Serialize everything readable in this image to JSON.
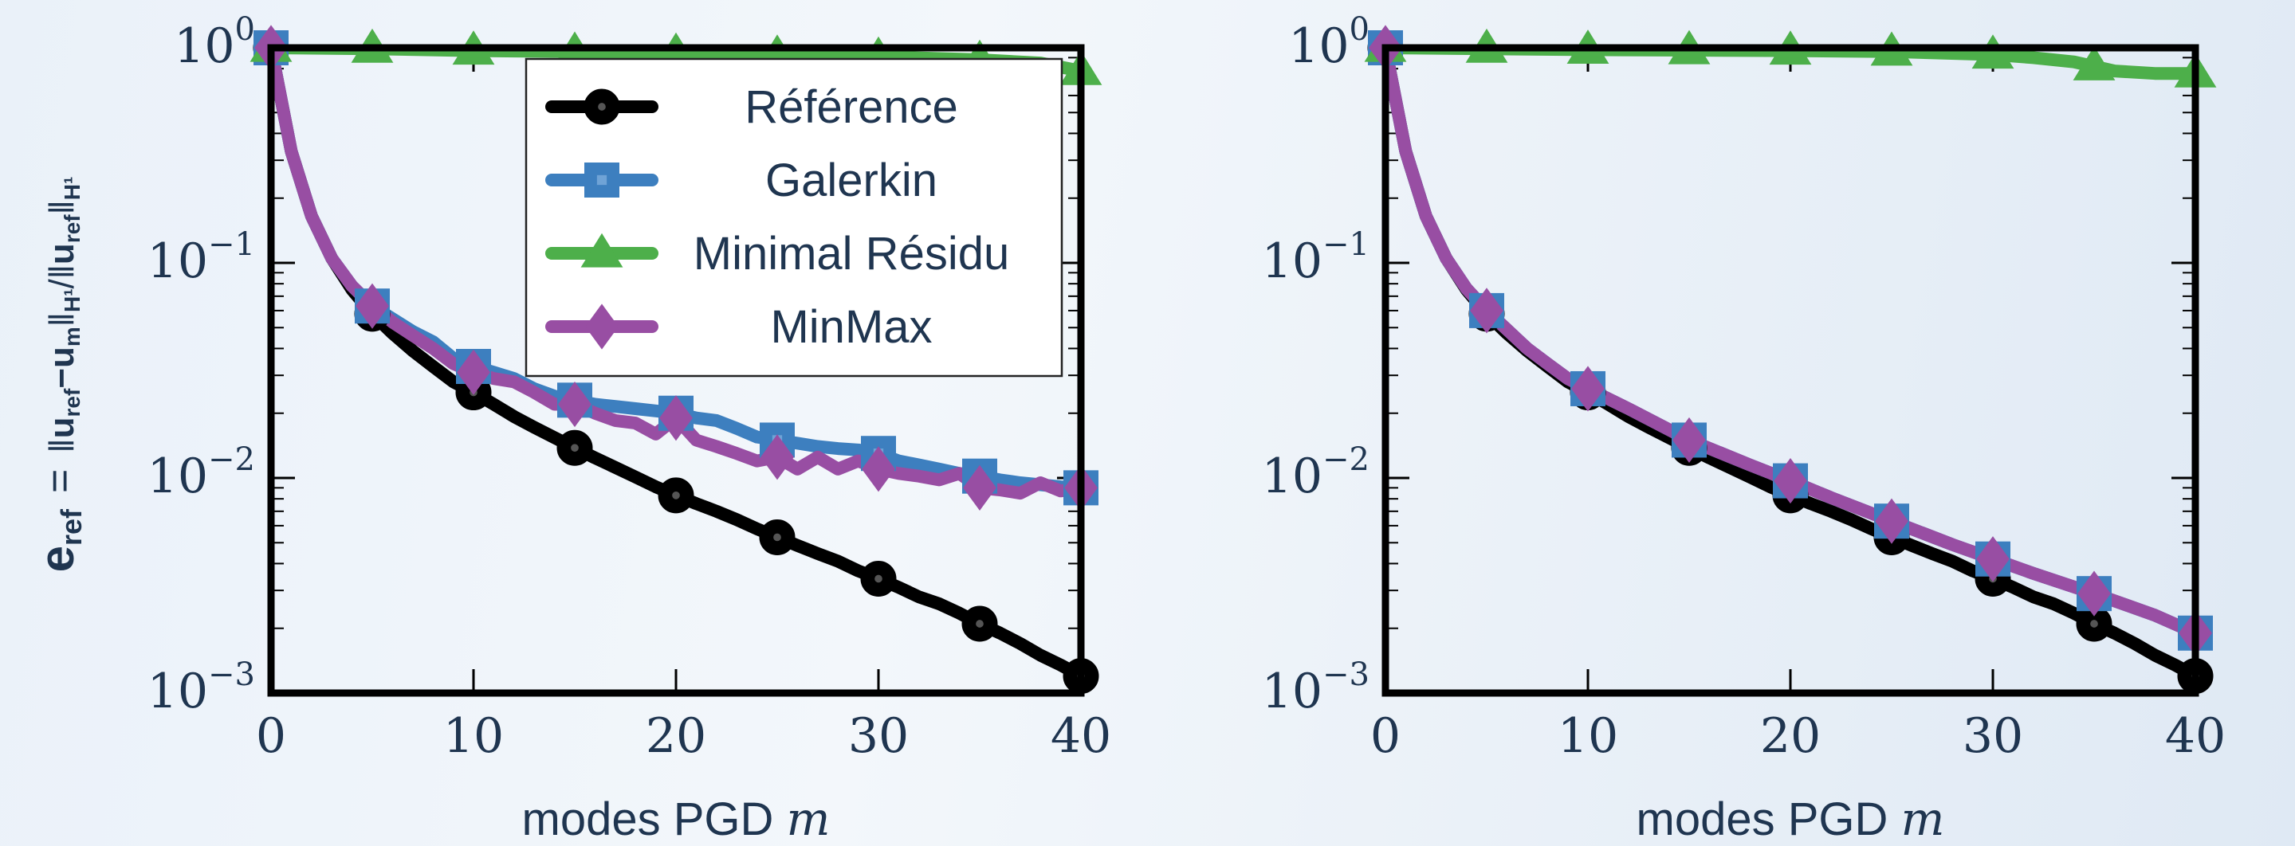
{
  "y_axis_label": "e_ref = ||u_ref − u_m||_H¹ / ||u_ref||_H¹",
  "y_axis_label_parts": {
    "e": "e",
    "e_sub": "ref",
    "eq": "=",
    "num_a": "u",
    "num_a_sub": "ref",
    "minus": "−",
    "num_b": "u",
    "num_b_sub": "m",
    "norm_sub": "H¹",
    "slash": "/",
    "den": "u",
    "den_sub": "ref"
  },
  "x_axis_label": {
    "text": "modes PGD ",
    "variable": "m"
  },
  "tick_base": "10",
  "chart_data": [
    {
      "type": "line",
      "yscale": "log",
      "xlim": [
        0,
        40
      ],
      "ylim": [
        0.001,
        1
      ],
      "xticks": [
        0,
        10,
        20,
        30,
        40
      ],
      "yticks": [
        {
          "value": 1,
          "exp": "0"
        },
        {
          "value": 0.1,
          "exp": "−1"
        },
        {
          "value": 0.01,
          "exp": "−2"
        },
        {
          "value": 0.001,
          "exp": "−3"
        }
      ],
      "xlabel": "modes PGD m",
      "ylabel": "e_ref",
      "grid": false,
      "legend": {
        "position": "top-right"
      },
      "series": [
        {
          "name": "Référence",
          "color": "#000000",
          "marker": "circle",
          "x": [
            0,
            1,
            2,
            3,
            4,
            5,
            6,
            7,
            8,
            9,
            10,
            11,
            12,
            13,
            14,
            15,
            16,
            17,
            18,
            19,
            20,
            21,
            22,
            23,
            24,
            25,
            26,
            27,
            28,
            29,
            30,
            31,
            32,
            33,
            34,
            35,
            36,
            37,
            38,
            39,
            40
          ],
          "y": [
            1,
            0.33,
            0.165,
            0.105,
            0.075,
            0.058,
            0.047,
            0.039,
            0.033,
            0.028,
            0.025,
            0.022,
            0.0193,
            0.0172,
            0.0154,
            0.0138,
            0.0124,
            0.0112,
            0.0101,
            0.0091,
            0.0083,
            0.0076,
            0.007,
            0.0064,
            0.0058,
            0.0053,
            0.00485,
            0.00445,
            0.0041,
            0.0037,
            0.0034,
            0.0031,
            0.0028,
            0.0026,
            0.00235,
            0.0021,
            0.0019,
            0.0017,
            0.0015,
            0.00135,
            0.0012
          ],
          "marker_x": [
            0,
            5,
            10,
            15,
            20,
            25,
            30,
            35,
            40
          ]
        },
        {
          "name": "Galerkin",
          "color": "#3d7fbf",
          "marker": "square",
          "x": [
            0,
            1,
            2,
            3,
            4,
            5,
            6,
            7,
            8,
            9,
            10,
            11,
            12,
            13,
            14,
            15,
            16,
            17,
            18,
            19,
            20,
            21,
            22,
            23,
            24,
            25,
            26,
            27,
            28,
            29,
            30,
            31,
            32,
            33,
            34,
            35,
            36,
            37,
            38,
            39,
            40
          ],
          "y": [
            1,
            0.33,
            0.165,
            0.105,
            0.078,
            0.063,
            0.055,
            0.048,
            0.043,
            0.036,
            0.033,
            0.031,
            0.029,
            0.026,
            0.024,
            0.023,
            0.022,
            0.0215,
            0.021,
            0.0205,
            0.02,
            0.019,
            0.0185,
            0.017,
            0.0155,
            0.015,
            0.0145,
            0.014,
            0.0137,
            0.0135,
            0.013,
            0.012,
            0.0115,
            0.011,
            0.0105,
            0.0102,
            0.0098,
            0.0095,
            0.0093,
            0.0091,
            0.009
          ],
          "marker_x": [
            0,
            5,
            10,
            15,
            20,
            25,
            30,
            35,
            40
          ]
        },
        {
          "name": "Minimal Résidu",
          "color": "#4daf4a",
          "marker": "triangle",
          "x": [
            0,
            5,
            10,
            15,
            20,
            25,
            30,
            35,
            38,
            40
          ],
          "y": [
            1,
            0.99,
            0.97,
            0.96,
            0.95,
            0.93,
            0.91,
            0.88,
            0.85,
            0.78
          ],
          "marker_x": [
            0,
            5,
            10,
            15,
            20,
            25,
            30,
            35,
            40
          ]
        },
        {
          "name": "MinMax",
          "color": "#984ea3",
          "marker": "diamond",
          "x": [
            0,
            1,
            2,
            3,
            4,
            5,
            6,
            7,
            8,
            9,
            10,
            11,
            12,
            13,
            14,
            15,
            16,
            17,
            18,
            19,
            20,
            21,
            22,
            23,
            24,
            25,
            26,
            27,
            28,
            29,
            30,
            31,
            32,
            33,
            34,
            35,
            36,
            37,
            38,
            39,
            40
          ],
          "y": [
            1,
            0.33,
            0.165,
            0.105,
            0.078,
            0.063,
            0.053,
            0.046,
            0.04,
            0.034,
            0.031,
            0.029,
            0.028,
            0.025,
            0.022,
            0.022,
            0.02,
            0.0185,
            0.018,
            0.016,
            0.019,
            0.015,
            0.014,
            0.013,
            0.012,
            0.0125,
            0.011,
            0.0125,
            0.011,
            0.012,
            0.011,
            0.0105,
            0.0102,
            0.0098,
            0.0105,
            0.009,
            0.0088,
            0.0085,
            0.0095,
            0.0087,
            0.009
          ],
          "marker_x": [
            0,
            5,
            10,
            15,
            20,
            25,
            30,
            35,
            40
          ]
        }
      ]
    },
    {
      "type": "line",
      "yscale": "log",
      "xlim": [
        0,
        40
      ],
      "ylim": [
        0.001,
        1
      ],
      "xticks": [
        0,
        10,
        20,
        30,
        40
      ],
      "yticks": [
        {
          "value": 1,
          "exp": "0"
        },
        {
          "value": 0.1,
          "exp": "−1"
        },
        {
          "value": 0.01,
          "exp": "−2"
        },
        {
          "value": 0.001,
          "exp": "−3"
        }
      ],
      "xlabel": "modes PGD m",
      "grid": false,
      "series": [
        {
          "name": "Référence",
          "color": "#000000",
          "marker": "circle",
          "x": [
            0,
            1,
            2,
            3,
            4,
            5,
            6,
            7,
            8,
            9,
            10,
            11,
            12,
            13,
            14,
            15,
            16,
            17,
            18,
            19,
            20,
            21,
            22,
            23,
            24,
            25,
            26,
            27,
            28,
            29,
            30,
            31,
            32,
            33,
            34,
            35,
            36,
            37,
            38,
            39,
            40
          ],
          "y": [
            1,
            0.33,
            0.165,
            0.105,
            0.075,
            0.058,
            0.047,
            0.039,
            0.033,
            0.028,
            0.025,
            0.022,
            0.0193,
            0.0172,
            0.0154,
            0.0138,
            0.0124,
            0.0112,
            0.0101,
            0.0091,
            0.0083,
            0.0076,
            0.007,
            0.0064,
            0.0058,
            0.0053,
            0.00485,
            0.00445,
            0.0041,
            0.0037,
            0.0034,
            0.0031,
            0.0028,
            0.0026,
            0.00235,
            0.0021,
            0.0019,
            0.0017,
            0.0015,
            0.00135,
            0.0012
          ],
          "marker_x": [
            0,
            5,
            10,
            15,
            20,
            25,
            30,
            35,
            40
          ]
        },
        {
          "name": "Galerkin",
          "color": "#3d7fbf",
          "marker": "square",
          "x": [
            0,
            1,
            2,
            3,
            4,
            5,
            6,
            7,
            8,
            9,
            10,
            12,
            15,
            18,
            20,
            22,
            25,
            28,
            30,
            32,
            35,
            38,
            40
          ],
          "y": [
            1,
            0.33,
            0.165,
            0.105,
            0.076,
            0.06,
            0.049,
            0.04,
            0.034,
            0.029,
            0.026,
            0.021,
            0.015,
            0.0115,
            0.0097,
            0.0081,
            0.0063,
            0.0049,
            0.0042,
            0.0036,
            0.0029,
            0.0023,
            0.0019
          ],
          "marker_x": [
            0,
            5,
            10,
            15,
            20,
            25,
            30,
            35,
            40
          ]
        },
        {
          "name": "Minimal Résidu",
          "color": "#4daf4a",
          "marker": "triangle",
          "x": [
            0,
            5,
            10,
            15,
            20,
            25,
            30,
            32,
            34,
            35,
            36,
            38,
            40
          ],
          "y": [
            1,
            0.99,
            0.98,
            0.975,
            0.97,
            0.96,
            0.93,
            0.9,
            0.86,
            0.82,
            0.78,
            0.76,
            0.76
          ],
          "marker_x": [
            0,
            5,
            10,
            15,
            20,
            25,
            30,
            35,
            40
          ]
        },
        {
          "name": "MinMax",
          "color": "#984ea3",
          "marker": "diamond",
          "x": [
            0,
            1,
            2,
            3,
            4,
            5,
            6,
            7,
            8,
            9,
            10,
            12,
            15,
            18,
            20,
            22,
            25,
            28,
            30,
            32,
            35,
            38,
            40
          ],
          "y": [
            1,
            0.33,
            0.165,
            0.105,
            0.076,
            0.06,
            0.049,
            0.04,
            0.034,
            0.029,
            0.026,
            0.021,
            0.015,
            0.0115,
            0.0097,
            0.0081,
            0.0063,
            0.0049,
            0.0042,
            0.0036,
            0.0029,
            0.0023,
            0.0019
          ],
          "marker_x": [
            0,
            5,
            10,
            15,
            20,
            25,
            30,
            35,
            40
          ]
        }
      ]
    }
  ]
}
